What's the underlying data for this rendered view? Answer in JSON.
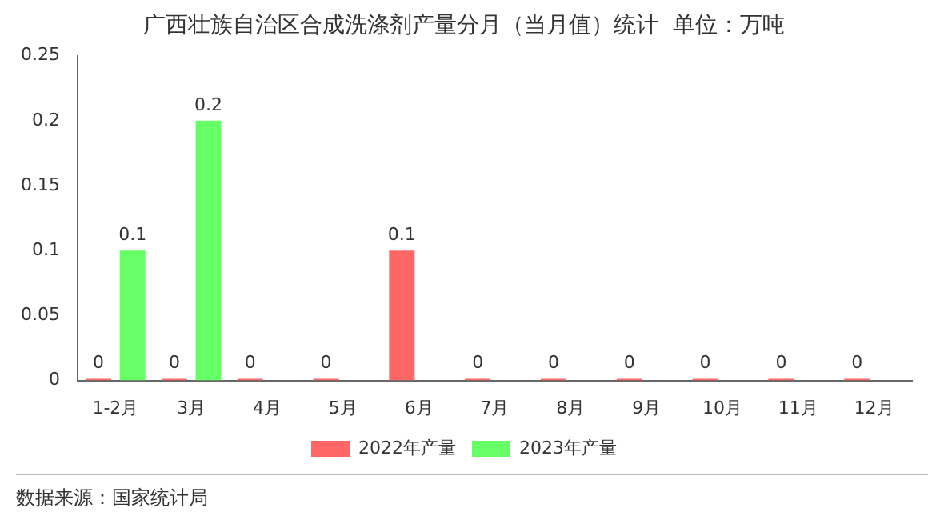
{
  "chart_data": {
    "type": "bar",
    "title": "广西壮族自治区合成洗涤剂产量分月（当月值）统计  单位：万吨",
    "categories": [
      "1-2月",
      "3月",
      "4月",
      "5月",
      "6月",
      "7月",
      "8月",
      "9月",
      "10月",
      "11月",
      "12月"
    ],
    "series": [
      {
        "name": "2022年产量",
        "color": "#ff6666",
        "values": [
          0,
          0,
          0,
          0,
          0.1,
          0,
          0,
          0,
          0,
          0,
          0
        ]
      },
      {
        "name": "2023年产量",
        "color": "#66ff66",
        "values": [
          0.1,
          0.2,
          null,
          null,
          null,
          null,
          null,
          null,
          null,
          null,
          null
        ]
      }
    ],
    "ylim": [
      0,
      0.25
    ],
    "yticks": [
      0,
      0.05,
      0.1,
      0.15,
      0.2,
      0.25
    ],
    "grid": false,
    "legend": "bottom",
    "data_labels": true,
    "annotations": [
      "数据来源：国家统计局"
    ]
  }
}
